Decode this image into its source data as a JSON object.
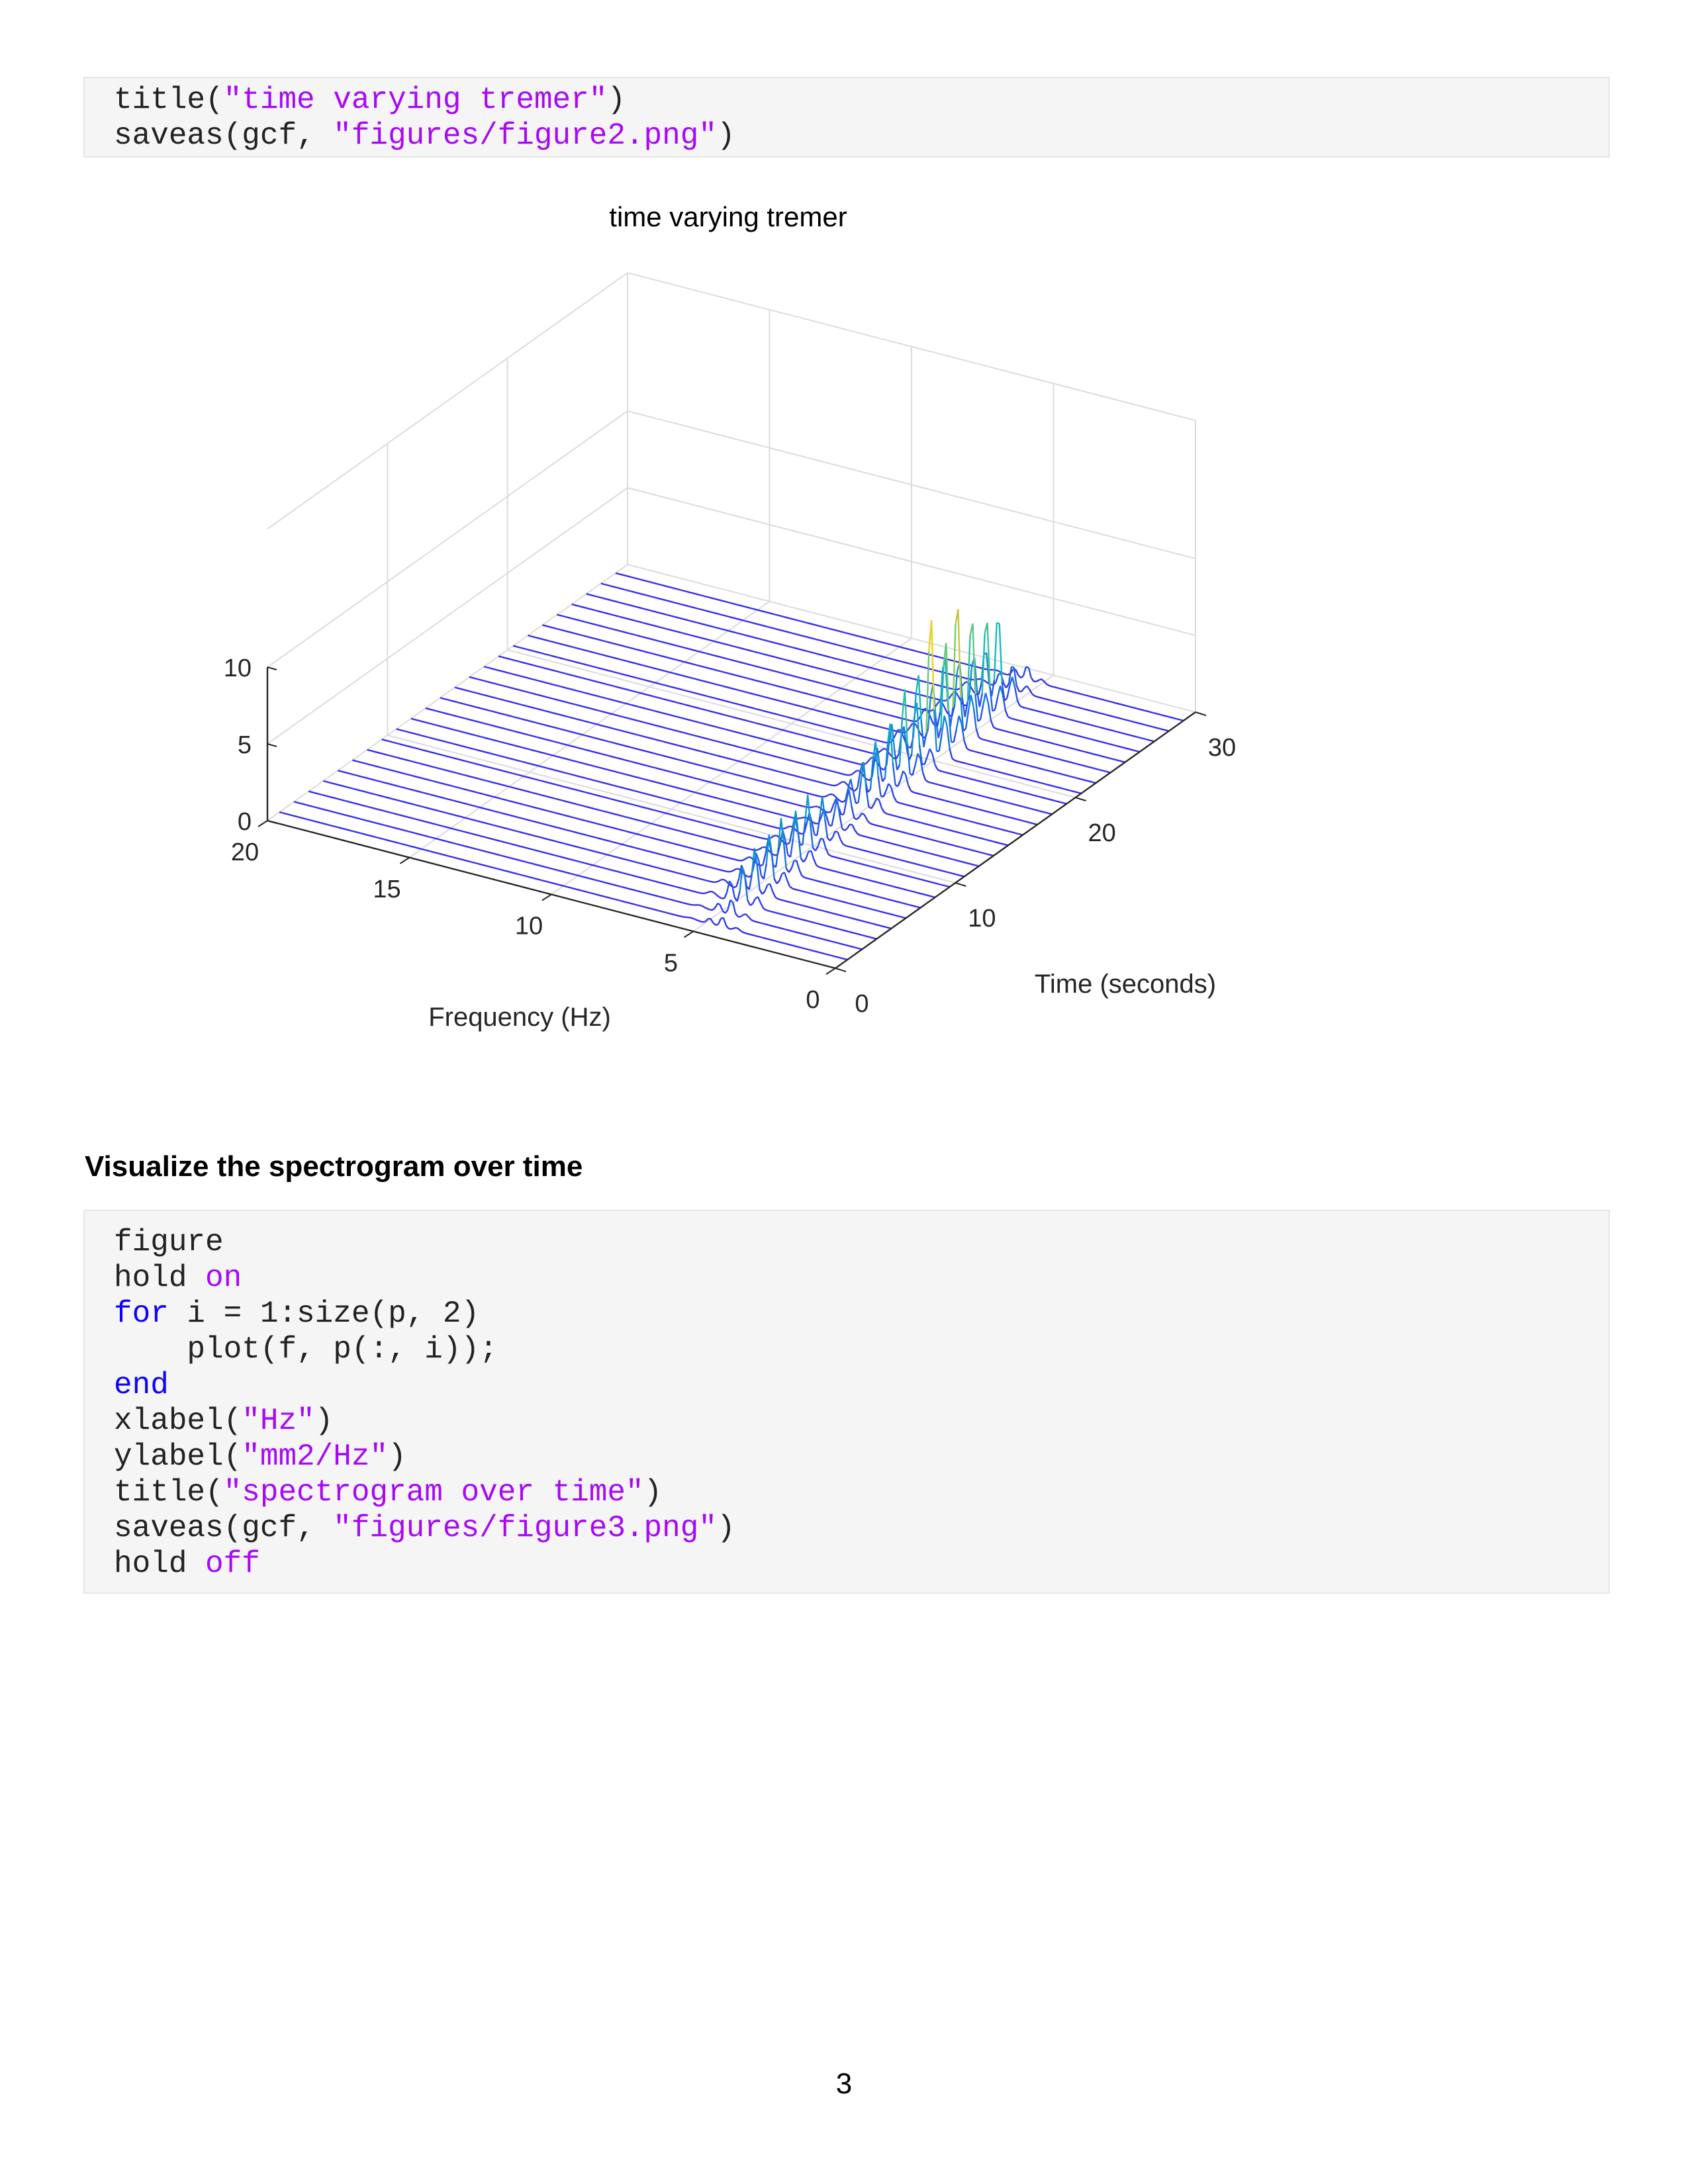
{
  "code_top": {
    "lines": [
      [
        {
          "t": "title(",
          "c": "plain"
        },
        {
          "t": "\"time varying tremer\"",
          "c": "str"
        },
        {
          "t": ")",
          "c": "plain"
        }
      ],
      [
        {
          "t": "saveas(gcf, ",
          "c": "plain"
        },
        {
          "t": "\"figures/figure2.png\"",
          "c": "str"
        },
        {
          "t": ")",
          "c": "plain"
        }
      ]
    ]
  },
  "figure": {
    "title": "time varying tremer",
    "xlabel": "Frequency (Hz)",
    "ylabel": "Time (seconds)",
    "freq_ticks": [
      "20",
      "15",
      "10",
      "5",
      "0"
    ],
    "time_ticks": [
      "0",
      "10",
      "20",
      "30"
    ],
    "z_ticks": [
      "0",
      "5",
      "10"
    ]
  },
  "chart_data": {
    "type": "line",
    "title": "time varying tremer",
    "xlabel": "Frequency (Hz)",
    "ylabel": "Time (seconds)",
    "zlabel": "",
    "xlim": [
      0,
      20
    ],
    "ylim": [
      0,
      30
    ],
    "zlim": [
      0,
      10
    ],
    "grid": true,
    "colormap": "parula",
    "series_count": 24,
    "series": [
      {
        "time": 0,
        "peaks": [
          [
            4.4,
            0.7
          ]
        ]
      },
      {
        "time": 1,
        "peaks": [
          [
            4.6,
            1.1
          ]
        ]
      },
      {
        "time": 2,
        "peaks": [
          [
            4.7,
            2.5
          ]
        ]
      },
      {
        "time": 3,
        "peaks": [
          [
            4.8,
            3.0
          ]
        ]
      },
      {
        "time": 4,
        "peaks": [
          [
            4.8,
            3.2
          ]
        ]
      },
      {
        "time": 5,
        "peaks": [
          [
            4.9,
            3.5
          ]
        ]
      },
      {
        "time": 6,
        "peaks": [
          [
            4.9,
            3.3
          ]
        ]
      },
      {
        "time": 7,
        "peaks": [
          [
            5.0,
            3.6
          ]
        ]
      },
      {
        "time": 8,
        "peaks": [
          [
            5.0,
            2.8
          ]
        ]
      },
      {
        "time": 9,
        "peaks": [
          [
            5.0,
            2.0
          ]
        ]
      },
      {
        "time": 10,
        "peaks": [
          [
            5.1,
            1.9
          ]
        ]
      },
      {
        "time": 11,
        "peaks": [
          [
            5.1,
            3.0
          ]
        ]
      },
      {
        "time": 12,
        "peaks": [
          [
            5.2,
            3.7
          ]
        ]
      },
      {
        "time": 13,
        "peaks": [
          [
            5.2,
            4.2
          ]
        ]
      },
      {
        "time": 14,
        "peaks": [
          [
            5.2,
            5.8
          ]
        ]
      },
      {
        "time": 15,
        "peaks": [
          [
            5.3,
            4.3
          ]
        ]
      },
      {
        "time": 16,
        "peaks": [
          [
            5.3,
            9.3
          ]
        ]
      },
      {
        "time": 17,
        "peaks": [
          [
            5.3,
            7.0
          ]
        ]
      },
      {
        "time": 18,
        "peaks": [
          [
            5.4,
            9.0
          ]
        ]
      },
      {
        "time": 19,
        "peaks": [
          [
            5.4,
            7.2
          ]
        ]
      },
      {
        "time": 20,
        "peaks": [
          [
            5.4,
            6.5
          ]
        ]
      },
      {
        "time": 21,
        "peaks": [
          [
            5.5,
            6.0
          ]
        ]
      },
      {
        "time": 22,
        "peaks": [
          [
            5.5,
            1.8
          ]
        ]
      },
      {
        "time": 23,
        "peaks": [
          [
            5.5,
            1.0
          ]
        ]
      }
    ]
  },
  "section_heading": "Visualize the spectrogram over time",
  "code_bottom": {
    "lines": [
      [
        {
          "t": "figure",
          "c": "plain"
        }
      ],
      [
        {
          "t": "hold ",
          "c": "plain"
        },
        {
          "t": "on",
          "c": "str"
        }
      ],
      [
        {
          "t": "for",
          "c": "kw"
        },
        {
          "t": " i = 1:size(p, 2)",
          "c": "plain"
        }
      ],
      [
        {
          "t": "    plot(f, p(:, i));",
          "c": "plain"
        }
      ],
      [
        {
          "t": "end",
          "c": "kw"
        }
      ],
      [
        {
          "t": "xlabel(",
          "c": "plain"
        },
        {
          "t": "\"Hz\"",
          "c": "str"
        },
        {
          "t": ")",
          "c": "plain"
        }
      ],
      [
        {
          "t": "ylabel(",
          "c": "plain"
        },
        {
          "t": "\"mm2/Hz\"",
          "c": "str"
        },
        {
          "t": ")",
          "c": "plain"
        }
      ],
      [
        {
          "t": "title(",
          "c": "plain"
        },
        {
          "t": "\"spectrogram over time\"",
          "c": "str"
        },
        {
          "t": ")",
          "c": "plain"
        }
      ],
      [
        {
          "t": "saveas(gcf, ",
          "c": "plain"
        },
        {
          "t": "\"figures/figure3.png\"",
          "c": "str"
        },
        {
          "t": ")",
          "c": "plain"
        }
      ],
      [
        {
          "t": "hold ",
          "c": "plain"
        },
        {
          "t": "off",
          "c": "str"
        }
      ]
    ]
  },
  "page_number": "3"
}
